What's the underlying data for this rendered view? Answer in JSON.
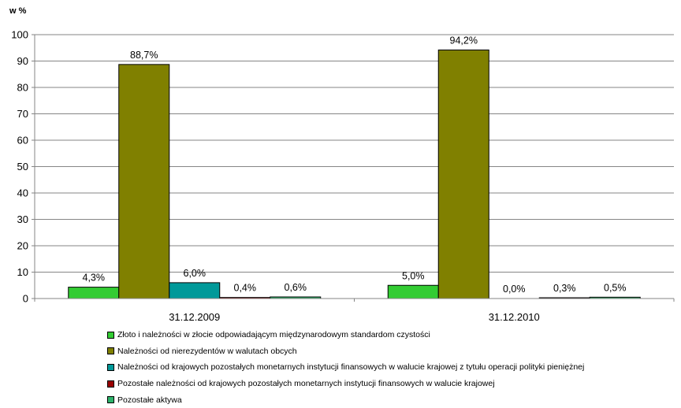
{
  "chart_data": {
    "type": "bar",
    "ylabel": "w %",
    "ylim": [
      0,
      100
    ],
    "yticks": [
      0,
      10,
      20,
      30,
      40,
      50,
      60,
      70,
      80,
      90,
      100
    ],
    "grid": true,
    "legend_position": "bottom",
    "categories": [
      "31.12.2009",
      "31.12.2010"
    ],
    "series": [
      {
        "name": "Złoto i należności w złocie odpowiadającym międzynarodowym standardom czystości",
        "color": "#33cc33",
        "values": [
          4.3,
          5.0
        ],
        "labels": [
          "4,3%",
          "5,0%"
        ]
      },
      {
        "name": "Należności od nierezydentów w walutach obcych",
        "color": "#808000",
        "values": [
          88.7,
          94.2
        ],
        "labels": [
          "88,7%",
          "94,2%"
        ]
      },
      {
        "name": "Należności od krajowych pozostałych monetarnych instytucji finansowych w walucie krajowej z tytułu operacji polityki pieniężnej",
        "color": "#009999",
        "values": [
          6.0,
          0.0
        ],
        "labels": [
          "6,0%",
          "0,0%"
        ]
      },
      {
        "name": "Pozostałe należności od krajowych pozostałych monetarnych instytucji finansowych w walucie krajowej",
        "color": "#990000",
        "values": [
          0.4,
          0.3
        ],
        "labels": [
          "0,4%",
          "0,3%"
        ]
      },
      {
        "name": "Pozostałe aktywa",
        "color": "#2db36b",
        "values": [
          0.6,
          0.5
        ],
        "labels": [
          "0,6%",
          "0,5%"
        ]
      }
    ]
  }
}
